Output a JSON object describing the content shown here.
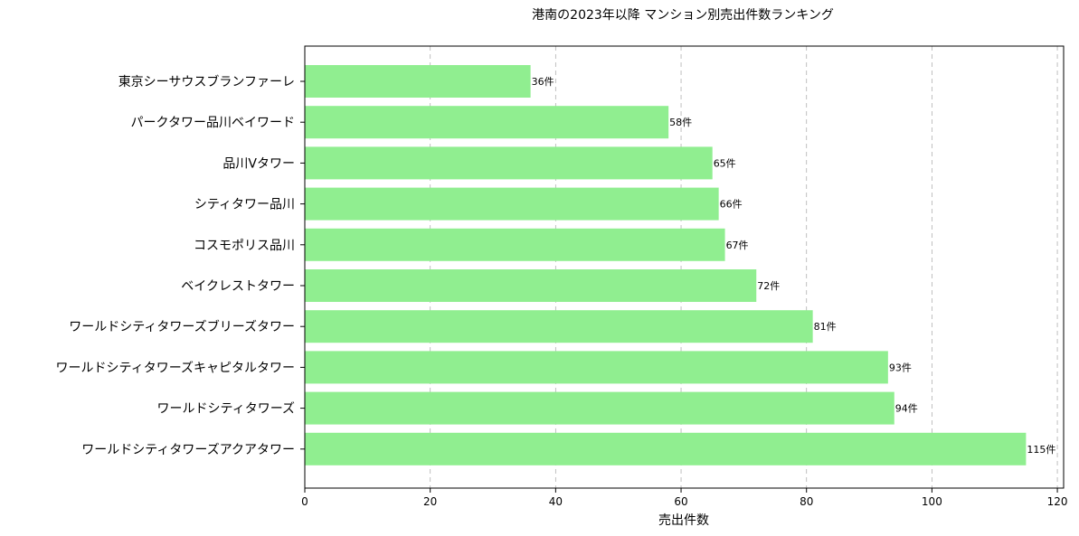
{
  "chart_data": {
    "type": "bar",
    "orientation": "horizontal",
    "title": "港南の2023年以降 マンション別売出件数ランキング",
    "xlabel": "売出件数",
    "ylabel": "",
    "xlim": [
      0,
      121
    ],
    "xticks": [
      0,
      20,
      40,
      60,
      80,
      100,
      120
    ],
    "grid": "x-dashed",
    "bar_color": "#90ee90",
    "value_suffix": "件",
    "categories": [
      "東京シーサウスブランファーレ",
      "パークタワー品川ベイワード",
      "品川Vタワー",
      "シティタワー品川",
      "コスモポリス品川",
      "ベイクレストタワー",
      "ワールドシティタワーズブリーズタワー",
      "ワールドシティタワーズキャピタルタワー",
      "ワールドシティタワーズ",
      "ワールドシティタワーズアクアタワー"
    ],
    "values": [
      36,
      58,
      65,
      66,
      67,
      72,
      81,
      93,
      94,
      115
    ],
    "data_labels": [
      "36件",
      "58件",
      "65件",
      "66件",
      "67件",
      "72件",
      "81件",
      "93件",
      "94件",
      "115件"
    ]
  }
}
